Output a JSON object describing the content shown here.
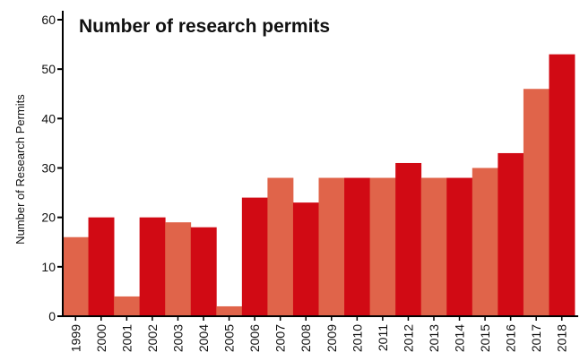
{
  "chart_data": {
    "type": "bar",
    "title": "Number of research permits",
    "xlabel": "",
    "ylabel": "Number of Research Permits",
    "categories": [
      "1999",
      "2000",
      "2001",
      "2002",
      "2003",
      "2004",
      "2005",
      "2006",
      "2007",
      "2008",
      "2009",
      "2010",
      "2011",
      "2012",
      "2013",
      "2014",
      "2015",
      "2016",
      "2017",
      "2018"
    ],
    "values": [
      16,
      20,
      4,
      20,
      19,
      18,
      2,
      24,
      28,
      23,
      28,
      28,
      28,
      31,
      28,
      28,
      30,
      33,
      46,
      53
    ],
    "ylim": [
      0,
      60
    ],
    "yticks": [
      0,
      10,
      20,
      30,
      40,
      50,
      60
    ],
    "grid": false,
    "colors": {
      "dark": "#d10a14",
      "light": "#e0644a"
    },
    "bar_colors": [
      "light",
      "dark",
      "light",
      "dark",
      "light",
      "dark",
      "light",
      "dark",
      "light",
      "dark",
      "light",
      "dark",
      "light",
      "dark",
      "light",
      "dark",
      "light",
      "dark",
      "light",
      "dark"
    ]
  }
}
